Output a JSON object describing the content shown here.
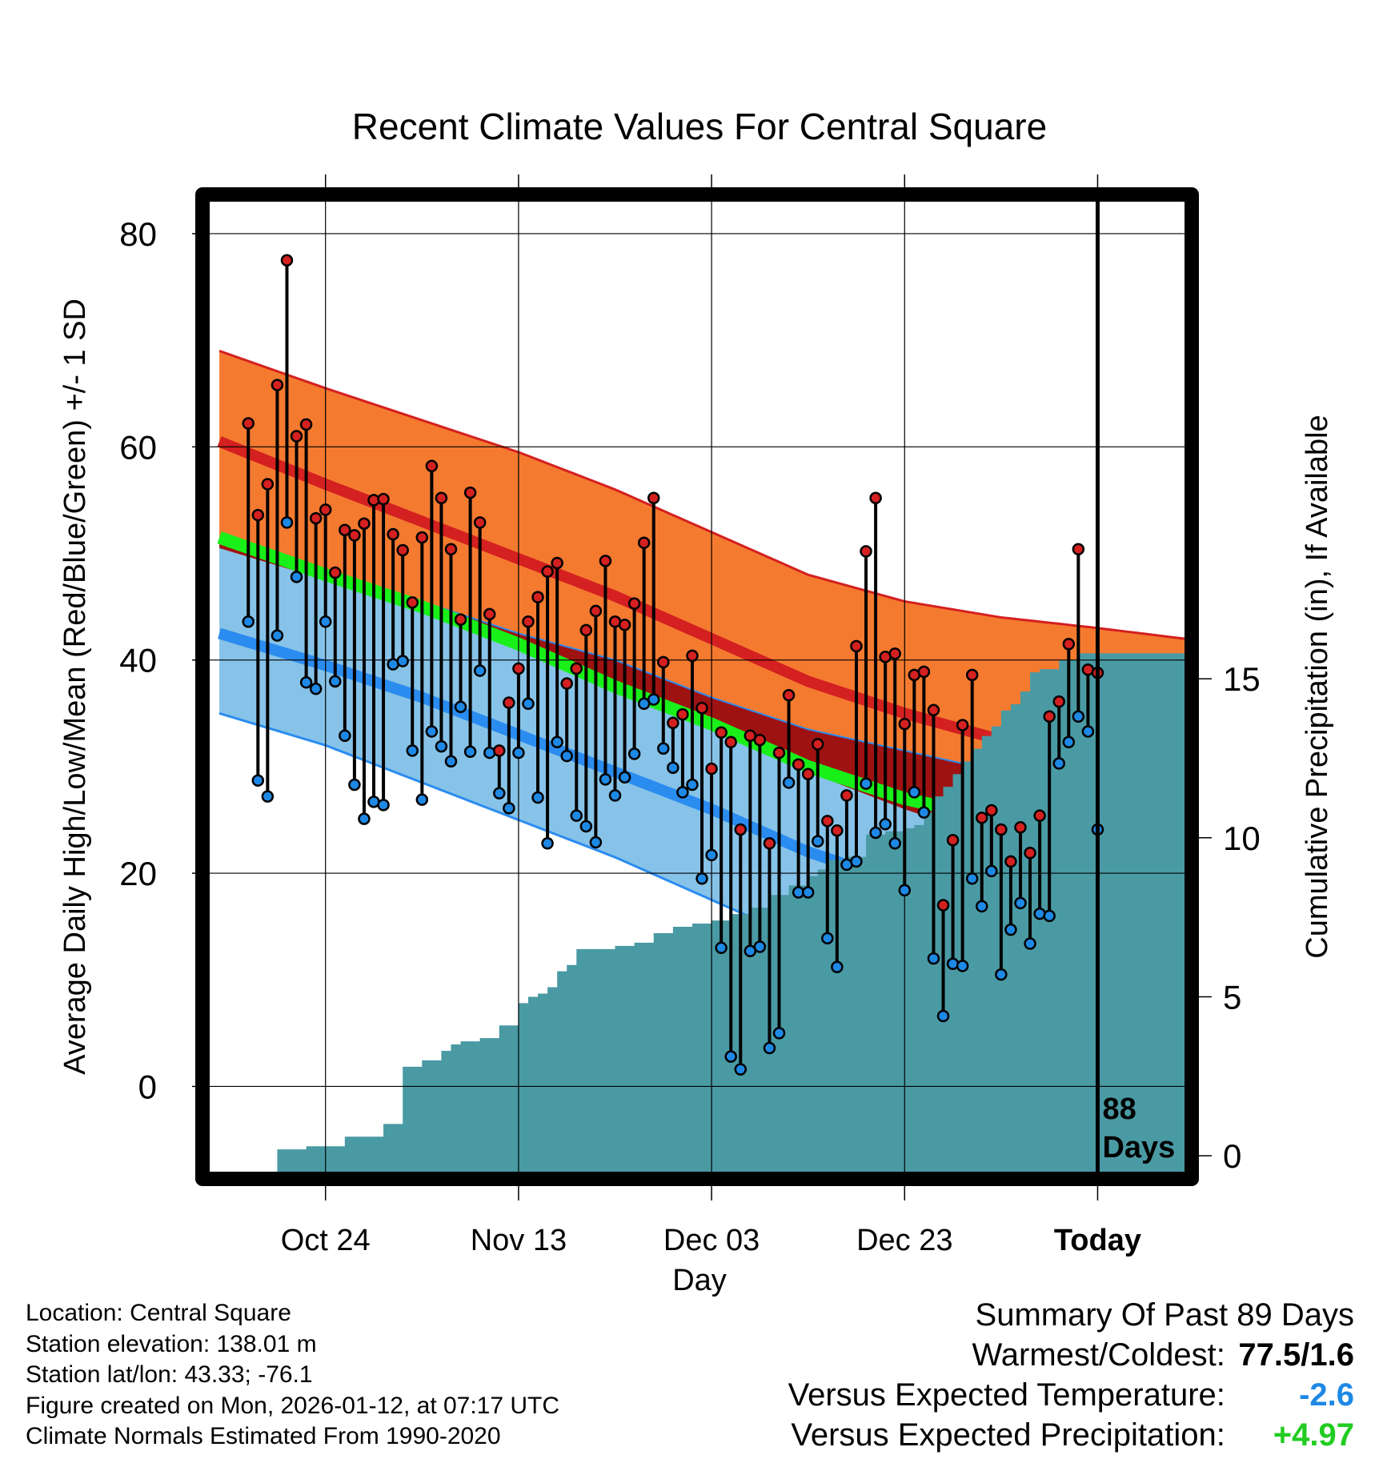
{
  "chart_data": {
    "type": "line",
    "title": "Recent Climate Values For Central Square",
    "xlabel": "Day",
    "ylabel_left": "Average Daily High/Low/Mean (Red/Blue/Green) +/- 1 SD",
    "ylabel_right": "Cumulative Precipitation (in), If Available",
    "x_range_days": [
      -92,
      9
    ],
    "y_left_lim": [
      -8,
      83
    ],
    "y_right_lim": [
      -0.5,
      30
    ],
    "y_left_ticks": [
      "80",
      "60",
      "40",
      "20",
      "0"
    ],
    "y_right_ticks": [
      "15",
      "10",
      "5",
      "0"
    ],
    "x_tick_days": [
      -80,
      -60,
      -40,
      -20,
      0
    ],
    "x_tick_labels": [
      "Oct 24",
      "Nov 13",
      "Dec 03",
      "Dec 23",
      "Today"
    ],
    "today_label": [
      "88",
      "Days"
    ],
    "normals": {
      "days": [
        -91,
        -80,
        -70,
        -60,
        -50,
        -40,
        -30,
        -20,
        -10,
        0,
        9
      ],
      "high_plus_sd": [
        69,
        65.5,
        62.5,
        59.5,
        56,
        52,
        48,
        45.5,
        44,
        43,
        42
      ],
      "high_mean": [
        60.5,
        56.5,
        53,
        49.5,
        46,
        42,
        38,
        35,
        32.5,
        31,
        30.5
      ],
      "high_minus_sd": [
        51,
        48.5,
        45.5,
        42.5,
        40,
        36.5,
        33.5,
        31.5,
        29.5,
        28,
        27
      ],
      "mean": [
        51.5,
        48,
        45,
        41.5,
        37.5,
        34,
        30,
        27,
        25,
        23.5,
        22.5
      ],
      "low_plus_sd": [
        50.5,
        47.5,
        44.5,
        41,
        37.5,
        33.5,
        29.5,
        26,
        23,
        21,
        20
      ],
      "low_mean": [
        42.5,
        39.5,
        36.5,
        33,
        29.5,
        26,
        22,
        19,
        16.5,
        15,
        14.5
      ],
      "low_minus_sd": [
        35,
        32,
        28.5,
        25,
        21.5,
        17.5,
        13.5,
        10.5,
        8,
        6.5,
        6
      ]
    },
    "series": [
      {
        "name": "Daily High",
        "color": "#d42020",
        "values": [
          62.2,
          53.6,
          56.5,
          65.8,
          77.5,
          61.0,
          62.1,
          53.3,
          54.1,
          48.2,
          52.2,
          51.7,
          52.8,
          55.0,
          55.1,
          51.8,
          50.3,
          45.4,
          51.5,
          58.2,
          55.2,
          50.4,
          43.8,
          55.7,
          52.9,
          44.3,
          31.5,
          36.0,
          39.2,
          43.6,
          45.9,
          48.3,
          49.1,
          37.8,
          39.2,
          42.8,
          44.6,
          49.3,
          43.6,
          43.3,
          45.3,
          51.0,
          55.2,
          39.8,
          34.1,
          34.9,
          40.4,
          35.5,
          29.8,
          33.2,
          32.3,
          24.1,
          32.9,
          32.5,
          22.8,
          31.3,
          36.7,
          30.2,
          29.3,
          32.1,
          24.9,
          24.0,
          27.3,
          41.3,
          50.2,
          55.2,
          40.3,
          40.6,
          34.0,
          38.6,
          38.9,
          35.3,
          17.0,
          23.1,
          33.9,
          38.6,
          25.2,
          25.9,
          24.1,
          21.1,
          24.3,
          21.9,
          25.4,
          34.7,
          36.1,
          41.5,
          50.4,
          39.1,
          38.8
        ],
        "lows": [
          43.6,
          28.7,
          27.2,
          42.3,
          52.9,
          47.8,
          37.9,
          37.3,
          43.6,
          38.0,
          32.9,
          28.3,
          25.1,
          26.7,
          26.4,
          39.6,
          39.9,
          31.5,
          26.9,
          33.3,
          31.9,
          30.5,
          35.6,
          31.4,
          39.0,
          31.3,
          27.5,
          26.1,
          31.3,
          35.9,
          27.1,
          22.8,
          32.3,
          31.0,
          25.4,
          24.4,
          22.9,
          28.8,
          27.3,
          29.0,
          31.2,
          35.9,
          36.3,
          31.7,
          29.9,
          27.6,
          28.3,
          19.5,
          21.7,
          13.0,
          2.8,
          1.6,
          12.7,
          13.1,
          3.6,
          5.0,
          28.5,
          18.2,
          18.2,
          23.0,
          13.9,
          11.2,
          20.8,
          21.1,
          28.4,
          23.8,
          24.6,
          22.8,
          18.4,
          27.6,
          25.7,
          12.0,
          6.6,
          11.5,
          11.3,
          19.5,
          16.9,
          20.2,
          10.5,
          14.7,
          17.2,
          13.4,
          16.2,
          16.0,
          30.3,
          32.3,
          34.7,
          33.3,
          24.1
        ]
      }
    ],
    "precip": {
      "days": [
        -85,
        -82,
        -78,
        -75,
        -74,
        -72,
        -70,
        -68,
        -67,
        -66,
        -64,
        -62,
        -60,
        -59,
        -58,
        -57,
        -56,
        -55,
        -54,
        -50,
        -48,
        -46,
        -44,
        -42,
        -40,
        -38,
        -36,
        -34,
        -32,
        -30,
        -29,
        -28,
        -26,
        -24,
        -22,
        -20,
        -19,
        -18,
        -17,
        -16,
        -15,
        -14,
        -13,
        -12,
        -11,
        -10,
        -9,
        -8,
        -7,
        -6,
        -4,
        -2,
        -1,
        0,
        9
      ],
      "values": [
        0.2,
        0.3,
        0.6,
        0.6,
        1.0,
        2.8,
        3.0,
        3.3,
        3.5,
        3.6,
        3.7,
        4.1,
        4.8,
        5.0,
        5.1,
        5.3,
        5.8,
        6.0,
        6.5,
        6.6,
        6.7,
        7.0,
        7.2,
        7.3,
        7.4,
        7.6,
        7.8,
        8.2,
        8.5,
        8.8,
        9.0,
        9.3,
        9.4,
        10.1,
        10.2,
        10.3,
        10.4,
        10.8,
        11.3,
        11.6,
        12.0,
        12.4,
        12.8,
        13.2,
        13.5,
        14.0,
        14.2,
        14.6,
        15.2,
        15.3,
        15.6,
        15.8,
        15.8,
        15.8,
        15.8
      ]
    }
  },
  "footer": {
    "location": "Location: Central Square",
    "elevation": "Station elevation: 138.01 m",
    "latlon": "Station lat/lon: 43.33; -76.1",
    "created": "Figure created on Mon, 2026-01-12, at 07:17 UTC",
    "normals": "Climate Normals Estimated From 1990-2020"
  },
  "summary": {
    "heading": "Summary Of Past 89 Days",
    "warmest_coldest_label": "Warmest/Coldest:",
    "warmest_coldest_value": "77.5/1.6",
    "temp_label": "Versus Expected Temperature:",
    "temp_value": "-2.6",
    "temp_color": "#1e88e5",
    "precip_label": "Versus Expected Precipitation:",
    "precip_value": "+4.97",
    "precip_color": "#22cc22"
  }
}
